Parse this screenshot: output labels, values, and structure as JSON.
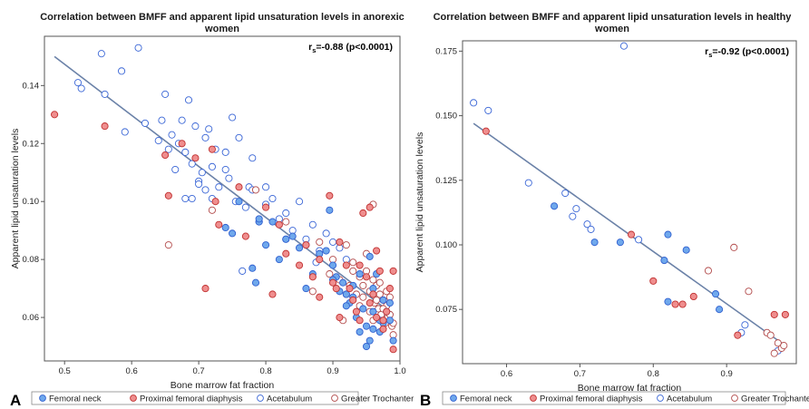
{
  "legend": {
    "entries": [
      {
        "label": "Femoral neck",
        "fill": "#6fa8ec",
        "stroke": "#2f5fd0"
      },
      {
        "label": "Proximal femoral diaphysis",
        "fill": "#ef8e8e",
        "stroke": "#c03030"
      },
      {
        "label": "Acetabulum",
        "fill": "#ffffff",
        "stroke": "#3a66d6"
      },
      {
        "label": "Greater Trochanter",
        "fill": "#ffffff",
        "stroke": "#b24a4a"
      }
    ]
  },
  "colors": {
    "regression_line": "#6b82a8",
    "frame": "#555555"
  },
  "chart_data": [
    {
      "type": "scatter",
      "panel_label": "A",
      "title_lines": [
        "Correlation between BMFF and apparent lipid unsaturation levels in anorexic",
        "women"
      ],
      "xlabel": "Bone marrow fat fraction",
      "ylabel": "Apparent lipid unsaturation levels",
      "xlim": [
        0.47,
        1.0
      ],
      "ylim": [
        0.045,
        0.157
      ],
      "xticks": [
        0.5,
        0.6,
        0.7,
        0.8,
        0.9,
        1.0
      ],
      "xtick_labels": [
        "0.5",
        "0.6",
        "0.7",
        "0.8",
        "0.9",
        "1.0"
      ],
      "yticks": [
        0.06,
        0.08,
        0.1,
        0.12,
        0.14
      ],
      "ytick_labels": [
        "0.06",
        "0.08",
        "0.10",
        "0.12",
        "0.14"
      ],
      "annotation": {
        "r": "r",
        "sub": "s",
        "text": "=-0.88 (p<0.0001)"
      },
      "regression": {
        "x": [
          0.485,
          0.99
        ],
        "y": [
          0.15,
          0.061
        ]
      },
      "series": [
        {
          "name": "Femoral neck",
          "legend_index": 0,
          "x": [
            0.74,
            0.76,
            0.785,
            0.79,
            0.8,
            0.81,
            0.82,
            0.84,
            0.85,
            0.86,
            0.87,
            0.88,
            0.89,
            0.895,
            0.9,
            0.905,
            0.91,
            0.915,
            0.92,
            0.925,
            0.93,
            0.935,
            0.94,
            0.945,
            0.95,
            0.955,
            0.96,
            0.965,
            0.97,
            0.975,
            0.98,
            0.985,
            0.985,
            0.99,
            0.955,
            0.95,
            0.96,
            0.93,
            0.94,
            0.975,
            0.75,
            0.79,
            0.83,
            0.78,
            0.9,
            0.92,
            0.97,
            0.96
          ],
          "y": [
            0.091,
            0.1,
            0.072,
            0.093,
            0.085,
            0.093,
            0.08,
            0.088,
            0.084,
            0.07,
            0.075,
            0.082,
            0.083,
            0.097,
            0.078,
            0.074,
            0.069,
            0.072,
            0.068,
            0.065,
            0.067,
            0.06,
            0.055,
            0.063,
            0.057,
            0.052,
            0.062,
            0.075,
            0.055,
            0.058,
            0.062,
            0.065,
            0.059,
            0.052,
            0.081,
            0.05,
            0.056,
            0.071,
            0.075,
            0.066,
            0.089,
            0.094,
            0.087,
            0.077,
            0.073,
            0.064,
            0.059,
            0.07
          ]
        },
        {
          "name": "Proximal femoral diaphysis",
          "legend_index": 1,
          "x": [
            0.485,
            0.56,
            0.65,
            0.655,
            0.675,
            0.695,
            0.71,
            0.72,
            0.725,
            0.73,
            0.76,
            0.77,
            0.8,
            0.81,
            0.82,
            0.83,
            0.85,
            0.86,
            0.87,
            0.88,
            0.895,
            0.9,
            0.905,
            0.91,
            0.92,
            0.925,
            0.93,
            0.935,
            0.94,
            0.945,
            0.95,
            0.955,
            0.96,
            0.965,
            0.97,
            0.975,
            0.98,
            0.985,
            0.99,
            0.99,
            0.955,
            0.91,
            0.975,
            0.94,
            0.965,
            0.88
          ],
          "y": [
            0.13,
            0.126,
            0.116,
            0.102,
            0.12,
            0.115,
            0.07,
            0.118,
            0.1,
            0.092,
            0.105,
            0.088,
            0.098,
            0.068,
            0.092,
            0.082,
            0.078,
            0.085,
            0.074,
            0.08,
            0.102,
            0.072,
            0.07,
            0.086,
            0.078,
            0.07,
            0.066,
            0.062,
            0.078,
            0.096,
            0.074,
            0.065,
            0.068,
            0.06,
            0.076,
            0.059,
            0.062,
            0.07,
            0.076,
            0.049,
            0.098,
            0.06,
            0.056,
            0.059,
            0.083,
            0.067
          ]
        },
        {
          "name": "Acetabulum",
          "legend_index": 2,
          "x": [
            0.52,
            0.525,
            0.555,
            0.56,
            0.585,
            0.59,
            0.61,
            0.62,
            0.64,
            0.645,
            0.65,
            0.655,
            0.66,
            0.665,
            0.67,
            0.675,
            0.68,
            0.685,
            0.69,
            0.695,
            0.7,
            0.705,
            0.71,
            0.715,
            0.72,
            0.725,
            0.73,
            0.74,
            0.745,
            0.75,
            0.755,
            0.76,
            0.77,
            0.775,
            0.78,
            0.79,
            0.8,
            0.81,
            0.82,
            0.83,
            0.84,
            0.85,
            0.86,
            0.87,
            0.88,
            0.89,
            0.9,
            0.91,
            0.92,
            0.68,
            0.71,
            0.74,
            0.8,
            0.83,
            0.86,
            0.7,
            0.72,
            0.78,
            0.69,
            0.765,
            0.875
          ],
          "y": [
            0.141,
            0.139,
            0.151,
            0.137,
            0.145,
            0.124,
            0.153,
            0.127,
            0.121,
            0.128,
            0.137,
            0.118,
            0.123,
            0.111,
            0.12,
            0.128,
            0.101,
            0.135,
            0.113,
            0.126,
            0.107,
            0.11,
            0.104,
            0.125,
            0.112,
            0.118,
            0.105,
            0.117,
            0.108,
            0.129,
            0.1,
            0.122,
            0.098,
            0.105,
            0.104,
            0.093,
            0.105,
            0.101,
            0.094,
            0.096,
            0.09,
            0.1,
            0.087,
            0.092,
            0.083,
            0.089,
            0.086,
            0.084,
            0.08,
            0.117,
            0.122,
            0.111,
            0.099,
            0.087,
            0.085,
            0.106,
            0.101,
            0.115,
            0.101,
            0.076,
            0.079
          ]
        },
        {
          "name": "Greater Trochanter",
          "legend_index": 3,
          "x": [
            0.655,
            0.72,
            0.785,
            0.83,
            0.87,
            0.88,
            0.895,
            0.9,
            0.91,
            0.92,
            0.925,
            0.93,
            0.935,
            0.94,
            0.945,
            0.95,
            0.955,
            0.96,
            0.962,
            0.965,
            0.968,
            0.97,
            0.972,
            0.975,
            0.978,
            0.98,
            0.982,
            0.985,
            0.988,
            0.99,
            0.95,
            0.955,
            0.96,
            0.965,
            0.97,
            0.975,
            0.98,
            0.985,
            0.945,
            0.94,
            0.93,
            0.92,
            0.915,
            0.99,
            0.96
          ],
          "y": [
            0.085,
            0.097,
            0.104,
            0.093,
            0.069,
            0.086,
            0.075,
            0.08,
            0.073,
            0.085,
            0.071,
            0.079,
            0.068,
            0.074,
            0.067,
            0.082,
            0.069,
            0.073,
            0.065,
            0.071,
            0.063,
            0.068,
            0.061,
            0.066,
            0.058,
            0.064,
            0.06,
            0.067,
            0.057,
            0.054,
            0.076,
            0.062,
            0.059,
            0.066,
            0.072,
            0.063,
            0.069,
            0.061,
            0.071,
            0.064,
            0.076,
            0.068,
            0.059,
            0.058,
            0.099
          ]
        }
      ]
    },
    {
      "type": "scatter",
      "panel_label": "B",
      "title_lines": [
        "Correlation between BMFF and apparent lipid unsaturation levels in healthy",
        "women"
      ],
      "xlabel": "Bone marrow fat fraction",
      "ylabel": "Apparent lipid unsaturation levels",
      "xlim": [
        0.54,
        0.995
      ],
      "ylim": [
        0.054,
        0.179
      ],
      "xticks": [
        0.6,
        0.7,
        0.8,
        0.9
      ],
      "xtick_labels": [
        "0.6",
        "0.7",
        "0.8",
        "0.9"
      ],
      "yticks": [
        0.075,
        0.1,
        0.125,
        0.15,
        0.175
      ],
      "ytick_labels": [
        "0.075",
        "0.100",
        "0.125",
        "0.150",
        "0.175"
      ],
      "annotation": {
        "r": "r",
        "sub": "s",
        "text": "=-0.92 (p<0.0001)"
      },
      "regression": {
        "x": [
          0.555,
          0.975
        ],
        "y": [
          0.147,
          0.062
        ]
      },
      "series": [
        {
          "name": "Femoral neck",
          "legend_index": 0,
          "x": [
            0.665,
            0.72,
            0.755,
            0.815,
            0.82,
            0.82,
            0.845,
            0.885,
            0.89
          ],
          "y": [
            0.115,
            0.101,
            0.101,
            0.094,
            0.078,
            0.104,
            0.098,
            0.081,
            0.075
          ]
        },
        {
          "name": "Proximal femoral diaphysis",
          "legend_index": 1,
          "x": [
            0.572,
            0.77,
            0.8,
            0.83,
            0.84,
            0.855,
            0.915,
            0.965,
            0.98
          ],
          "y": [
            0.144,
            0.104,
            0.086,
            0.077,
            0.077,
            0.08,
            0.065,
            0.073,
            0.073
          ]
        },
        {
          "name": "Acetabulum",
          "legend_index": 2,
          "x": [
            0.555,
            0.575,
            0.63,
            0.68,
            0.69,
            0.695,
            0.71,
            0.715,
            0.76,
            0.78,
            0.92,
            0.925,
            0.97
          ],
          "y": [
            0.155,
            0.152,
            0.124,
            0.12,
            0.111,
            0.114,
            0.108,
            0.106,
            0.177,
            0.102,
            0.066,
            0.069,
            0.059
          ]
        },
        {
          "name": "Greater Trochanter",
          "legend_index": 3,
          "x": [
            0.875,
            0.91,
            0.93,
            0.955,
            0.965,
            0.97,
            0.975,
            0.978,
            0.96
          ],
          "y": [
            0.09,
            0.099,
            0.082,
            0.066,
            0.058,
            0.062,
            0.06,
            0.061,
            0.065
          ]
        }
      ]
    }
  ]
}
